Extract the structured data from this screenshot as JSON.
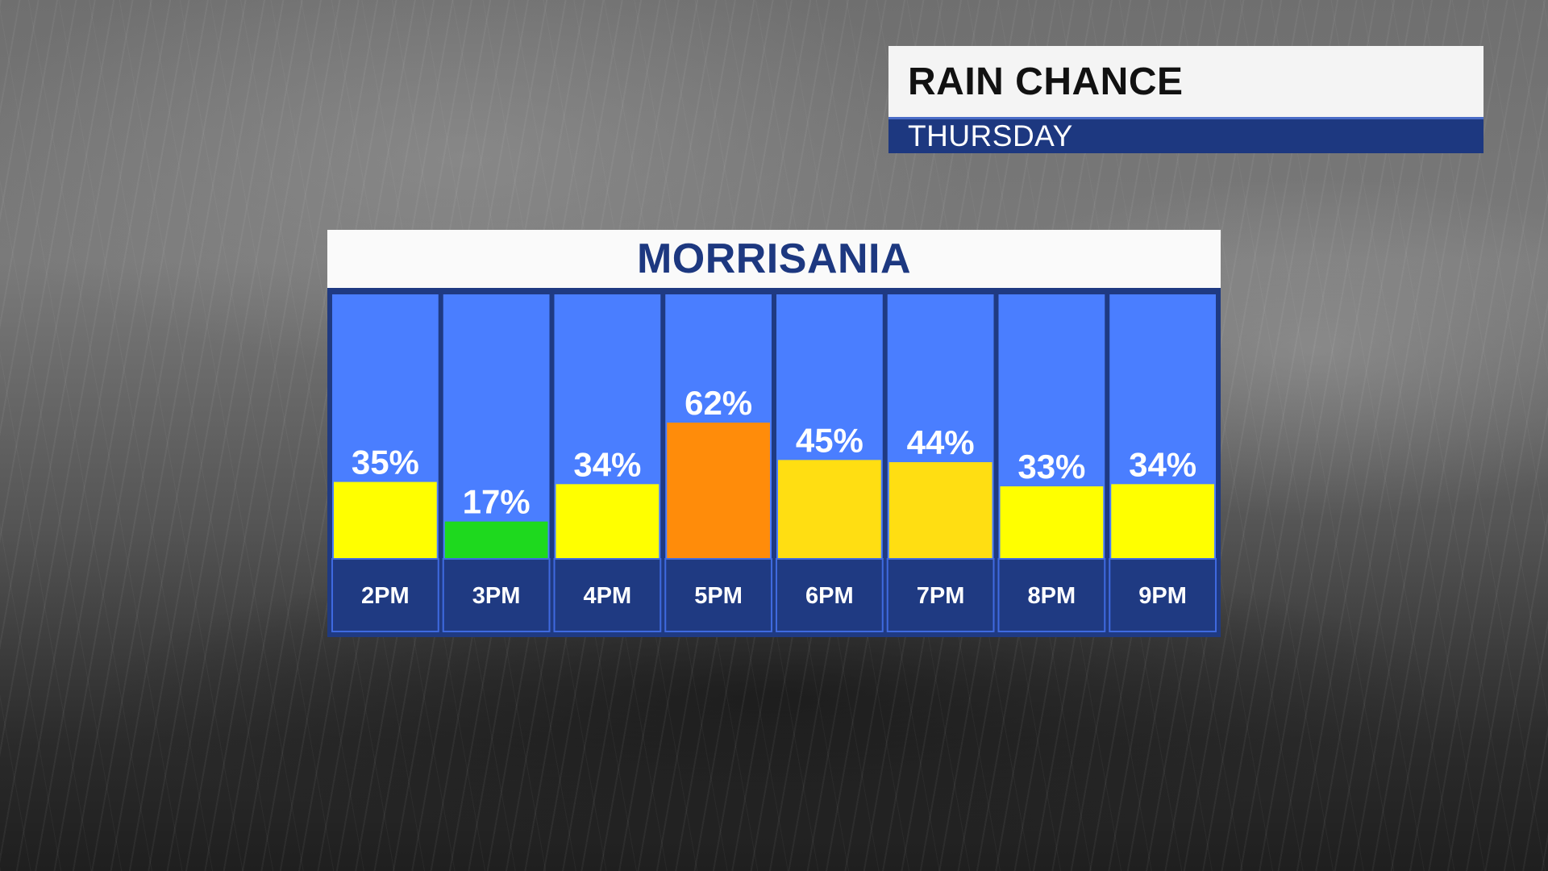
{
  "header": {
    "title": "RAIN CHANCE",
    "subtitle": "THURSDAY"
  },
  "chart_data": {
    "type": "bar",
    "title": "MORRISANIA",
    "categories": [
      "2PM",
      "3PM",
      "4PM",
      "5PM",
      "6PM",
      "7PM",
      "8PM",
      "9PM"
    ],
    "values": [
      35,
      17,
      34,
      62,
      45,
      44,
      33,
      34
    ],
    "value_labels": [
      "35%",
      "17%",
      "34%",
      "62%",
      "45%",
      "44%",
      "33%",
      "34%"
    ],
    "unit": "%",
    "ylim": [
      0,
      100
    ],
    "bar_colors": [
      "#ffff00",
      "#1ed91e",
      "#ffff00",
      "#ff8c0a",
      "#ffde12",
      "#ffde12",
      "#ffff00",
      "#ffff00"
    ],
    "column_color": "#4a7eff",
    "label_row_color": "#1f3a82"
  }
}
